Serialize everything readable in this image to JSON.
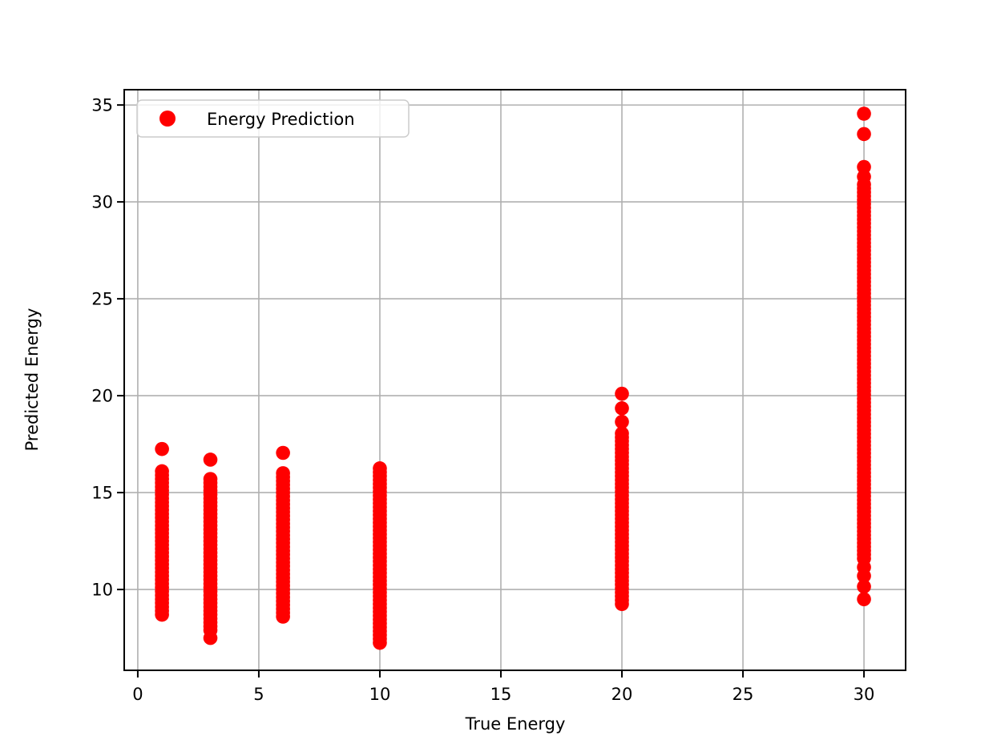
{
  "chart_data": {
    "type": "scatter",
    "title": "",
    "xlabel": "True Energy",
    "ylabel": "Predicted Energy",
    "xlim": [
      -0.56,
      31.72
    ],
    "ylim": [
      5.83,
      35.79
    ],
    "xticks": [
      0,
      5,
      10,
      15,
      20,
      25,
      30
    ],
    "yticks": [
      10,
      15,
      20,
      25,
      30,
      35
    ],
    "grid": true,
    "legend": {
      "label": "Energy Prediction",
      "position": "upper left"
    },
    "series": [
      {
        "name": "Energy Prediction",
        "color": "#ff0000",
        "marker": "circle",
        "clusters": [
          {
            "x": 1,
            "y_min": 8.7,
            "y_max": 16.1,
            "n": 38,
            "outliers": [
              17.25
            ]
          },
          {
            "x": 3,
            "y_min": 7.9,
            "y_max": 15.7,
            "n": 40,
            "outliers": [
              7.5,
              16.7
            ]
          },
          {
            "x": 6,
            "y_min": 8.6,
            "y_max": 16.0,
            "n": 38,
            "outliers": [
              17.05
            ]
          },
          {
            "x": 10,
            "y_min": 7.25,
            "y_max": 16.25,
            "n": 46,
            "outliers": []
          },
          {
            "x": 20,
            "y_min": 9.25,
            "y_max": 17.85,
            "n": 44,
            "outliers": [
              18.05,
              18.65,
              19.35,
              20.1
            ]
          },
          {
            "x": 30,
            "y_min": 11.6,
            "y_max": 30.9,
            "n": 97,
            "outliers": [
              9.5,
              10.15,
              10.7,
              11.15,
              31.3,
              31.8,
              33.5,
              34.55
            ]
          }
        ]
      }
    ]
  },
  "colors": {
    "marker": "#ff0000",
    "grid": "#b0b0b0",
    "spine": "#000000",
    "background": "#ffffff",
    "legend_border": "#cccccc",
    "legend_fill": "#ffffff"
  }
}
